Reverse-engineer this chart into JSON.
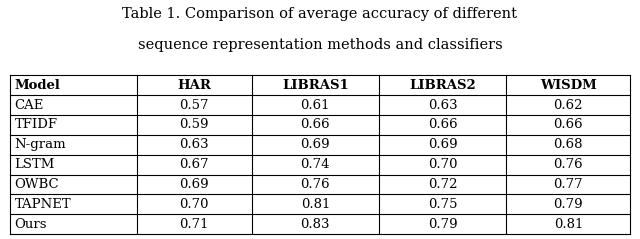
{
  "title_line1": "Table 1. Comparison of average accuracy of different",
  "title_line2": "sequence representation methods and classifiers",
  "headers": [
    "Model",
    "HAR",
    "LIBRAS1",
    "LIBRAS2",
    "WISDM"
  ],
  "rows": [
    [
      "CAE",
      "0.57",
      "0.61",
      "0.63",
      "0.62"
    ],
    [
      "TFIDF",
      "0.59",
      "0.66",
      "0.66",
      "0.66"
    ],
    [
      "N-gram",
      "0.63",
      "0.69",
      "0.69",
      "0.68"
    ],
    [
      "LSTM",
      "0.67",
      "0.74",
      "0.70",
      "0.76"
    ],
    [
      "OWBC",
      "0.69",
      "0.76",
      "0.72",
      "0.77"
    ],
    [
      "TAPNET",
      "0.70",
      "0.81",
      "0.75",
      "0.79"
    ],
    [
      "Ours",
      "0.71",
      "0.83",
      "0.79",
      "0.81"
    ]
  ],
  "header_fontsize": 9.5,
  "cell_fontsize": 9.5,
  "title_fontsize": 10.5,
  "background_color": "#ffffff",
  "line_color": "#000000",
  "col_props": [
    0.205,
    0.185,
    0.205,
    0.205,
    0.2
  ]
}
